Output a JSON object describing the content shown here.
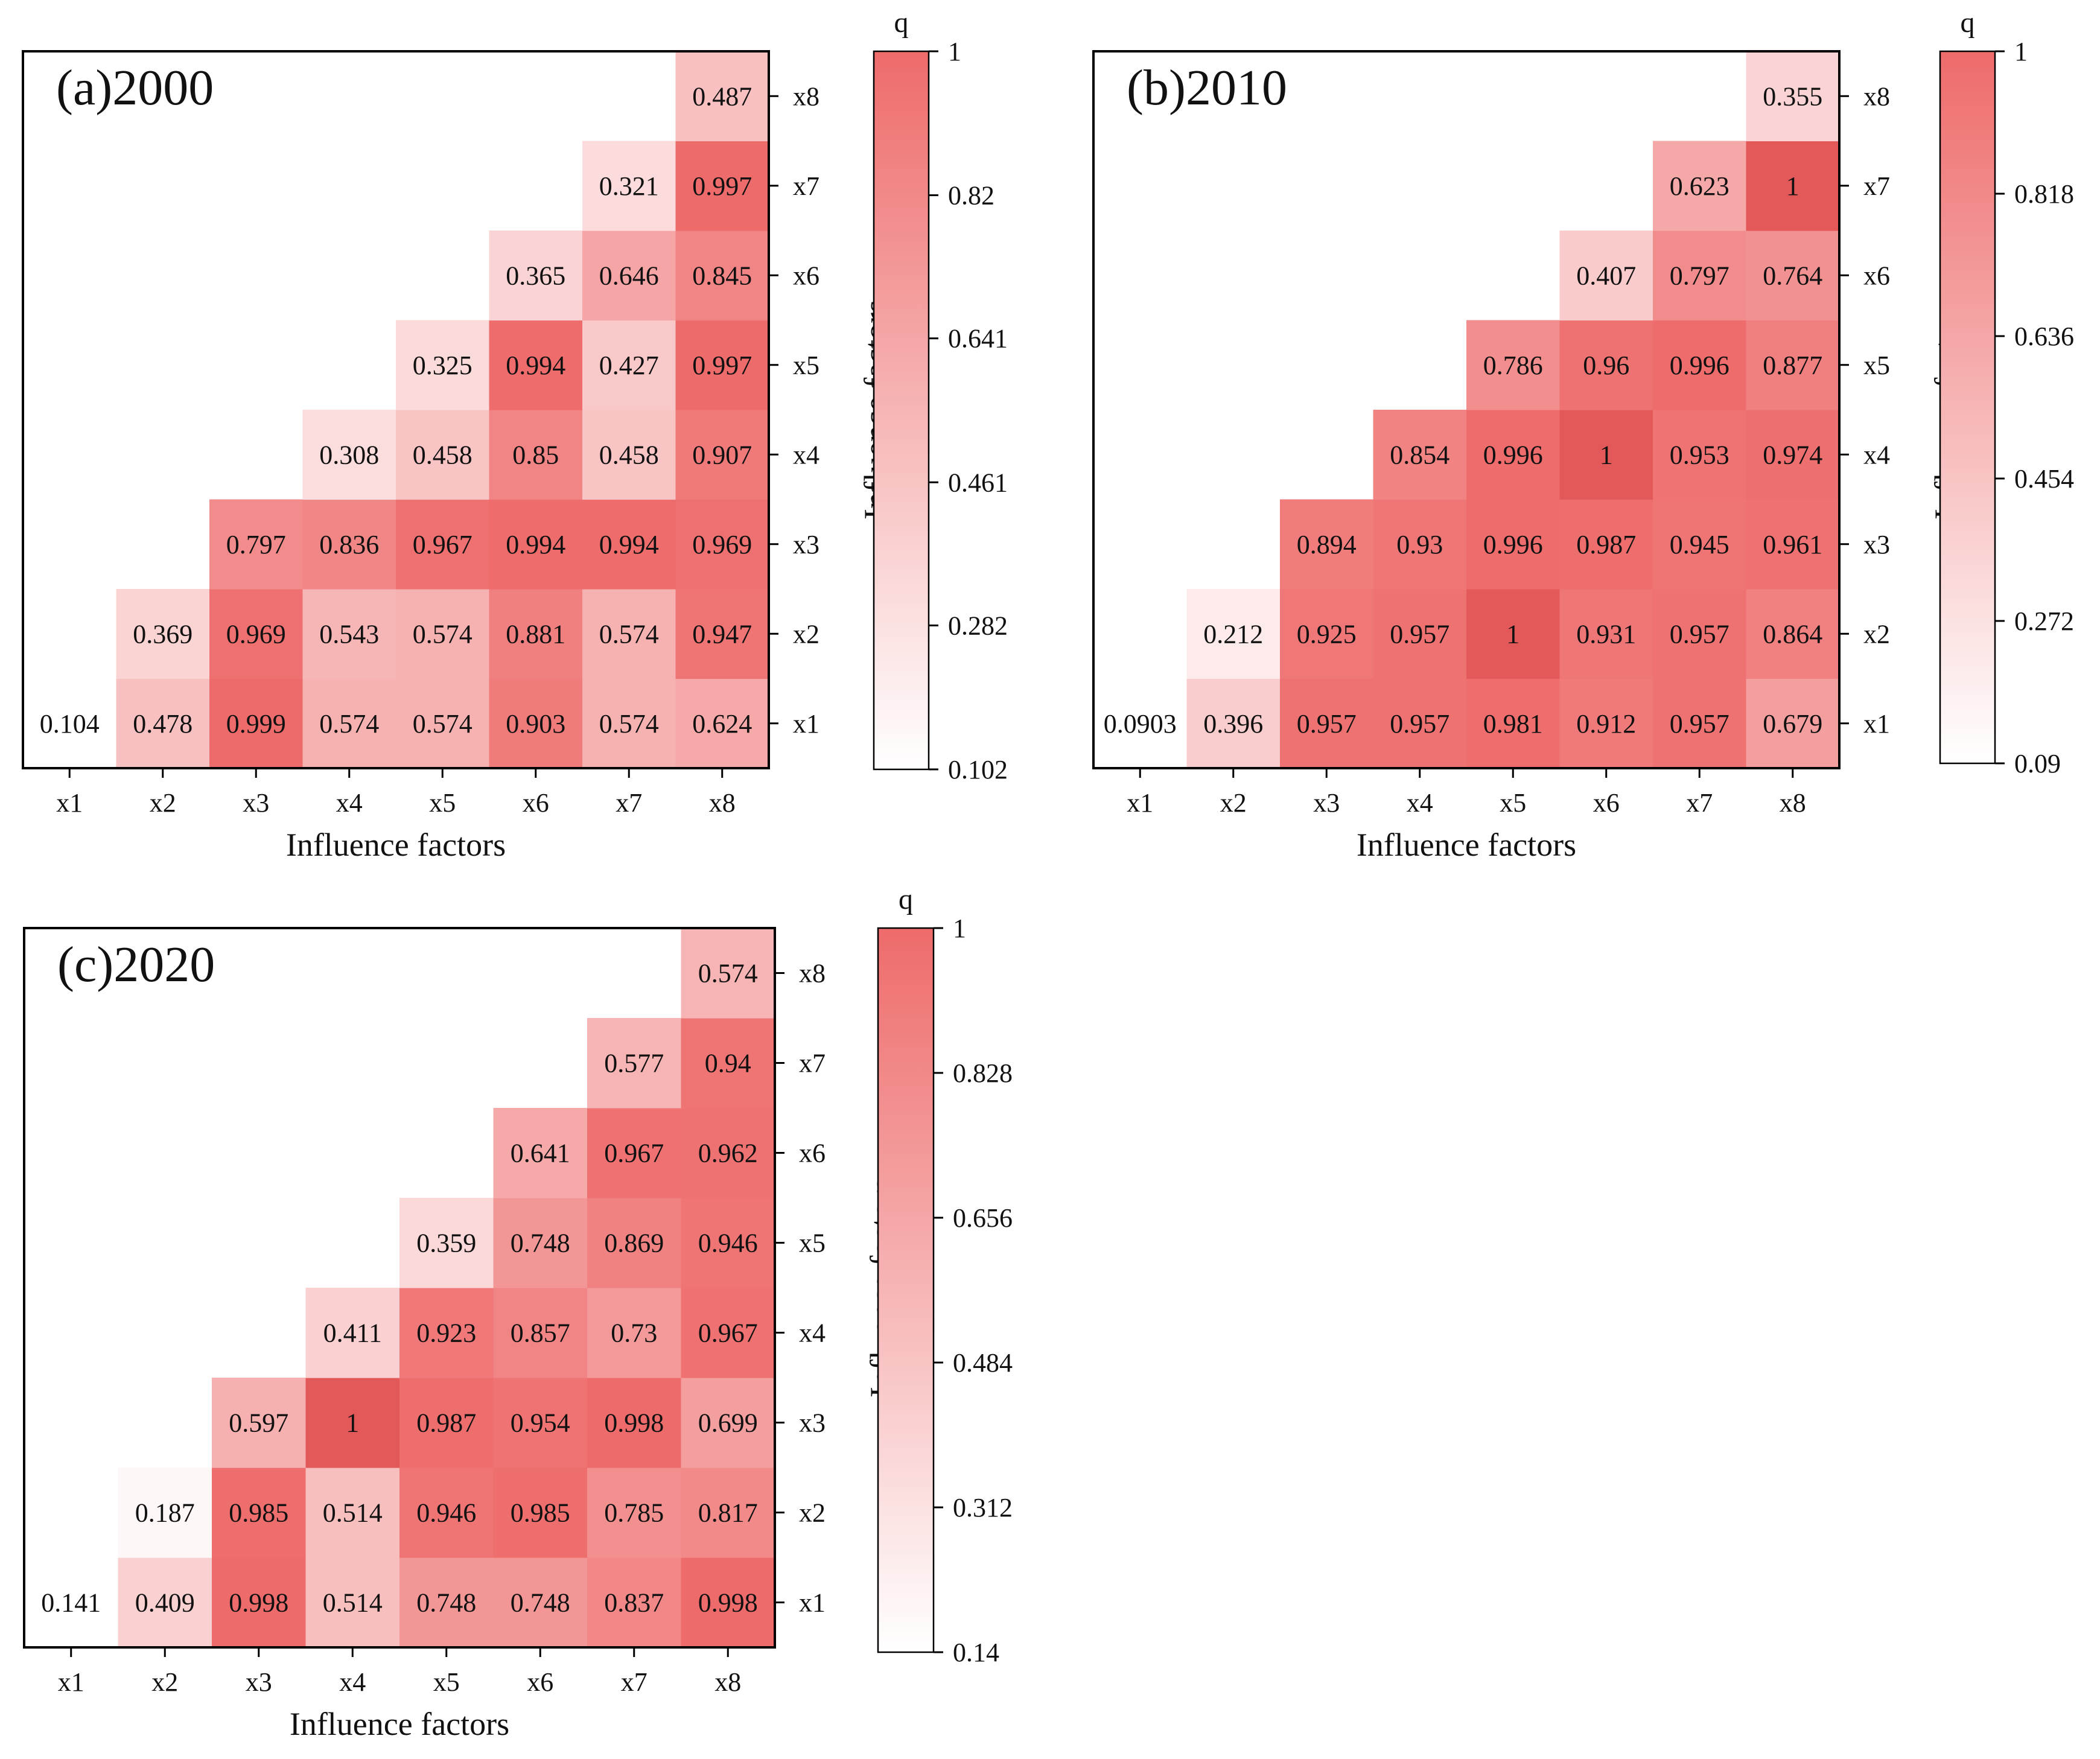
{
  "chart_data": [
    {
      "type": "heatmap",
      "title": "(a)2000",
      "xlabel": "Influence factors",
      "ylabel": "Influence factors",
      "x_categories": [
        "x1",
        "x2",
        "x3",
        "x4",
        "x5",
        "x6",
        "x7",
        "x8"
      ],
      "y_categories": [
        "x1",
        "x2",
        "x3",
        "x4",
        "x5",
        "x6",
        "x7",
        "x8"
      ],
      "cells": [
        {
          "x": "x1",
          "y": "x1",
          "value": 0.104,
          "label": "0.104"
        },
        {
          "x": "x2",
          "y": "x1",
          "value": 0.478,
          "label": "0.478"
        },
        {
          "x": "x3",
          "y": "x1",
          "value": 0.999,
          "label": "0.999"
        },
        {
          "x": "x4",
          "y": "x1",
          "value": 0.574,
          "label": "0.574"
        },
        {
          "x": "x5",
          "y": "x1",
          "value": 0.574,
          "label": "0.574"
        },
        {
          "x": "x6",
          "y": "x1",
          "value": 0.903,
          "label": "0.903"
        },
        {
          "x": "x7",
          "y": "x1",
          "value": 0.574,
          "label": "0.574"
        },
        {
          "x": "x8",
          "y": "x1",
          "value": 0.624,
          "label": "0.624"
        },
        {
          "x": "x2",
          "y": "x2",
          "value": 0.369,
          "label": "0.369"
        },
        {
          "x": "x3",
          "y": "x2",
          "value": 0.969,
          "label": "0.969"
        },
        {
          "x": "x4",
          "y": "x2",
          "value": 0.543,
          "label": "0.543"
        },
        {
          "x": "x5",
          "y": "x2",
          "value": 0.574,
          "label": "0.574"
        },
        {
          "x": "x6",
          "y": "x2",
          "value": 0.881,
          "label": "0.881"
        },
        {
          "x": "x7",
          "y": "x2",
          "value": 0.574,
          "label": "0.574"
        },
        {
          "x": "x8",
          "y": "x2",
          "value": 0.947,
          "label": "0.947"
        },
        {
          "x": "x3",
          "y": "x3",
          "value": 0.797,
          "label": "0.797"
        },
        {
          "x": "x4",
          "y": "x3",
          "value": 0.836,
          "label": "0.836"
        },
        {
          "x": "x5",
          "y": "x3",
          "value": 0.967,
          "label": "0.967"
        },
        {
          "x": "x6",
          "y": "x3",
          "value": 0.994,
          "label": "0.994"
        },
        {
          "x": "x7",
          "y": "x3",
          "value": 0.994,
          "label": "0.994"
        },
        {
          "x": "x8",
          "y": "x3",
          "value": 0.969,
          "label": "0.969"
        },
        {
          "x": "x4",
          "y": "x4",
          "value": 0.308,
          "label": "0.308"
        },
        {
          "x": "x5",
          "y": "x4",
          "value": 0.458,
          "label": "0.458"
        },
        {
          "x": "x6",
          "y": "x4",
          "value": 0.85,
          "label": "0.85"
        },
        {
          "x": "x7",
          "y": "x4",
          "value": 0.458,
          "label": "0.458"
        },
        {
          "x": "x8",
          "y": "x4",
          "value": 0.907,
          "label": "0.907"
        },
        {
          "x": "x5",
          "y": "x5",
          "value": 0.325,
          "label": "0.325"
        },
        {
          "x": "x6",
          "y": "x5",
          "value": 0.994,
          "label": "0.994"
        },
        {
          "x": "x7",
          "y": "x5",
          "value": 0.427,
          "label": "0.427"
        },
        {
          "x": "x8",
          "y": "x5",
          "value": 0.997,
          "label": "0.997"
        },
        {
          "x": "x6",
          "y": "x6",
          "value": 0.365,
          "label": "0.365"
        },
        {
          "x": "x7",
          "y": "x6",
          "value": 0.646,
          "label": "0.646"
        },
        {
          "x": "x8",
          "y": "x6",
          "value": 0.845,
          "label": "0.845"
        },
        {
          "x": "x7",
          "y": "x7",
          "value": 0.321,
          "label": "0.321"
        },
        {
          "x": "x8",
          "y": "x7",
          "value": 0.997,
          "label": "0.997"
        },
        {
          "x": "x8",
          "y": "x8",
          "value": 0.487,
          "label": "0.487"
        }
      ],
      "colorbar": {
        "title": "q",
        "min": 0.102,
        "max": 1,
        "ticks": [
          0.102,
          0.282,
          0.461,
          0.641,
          0.82,
          1
        ],
        "tick_labels": [
          "0.102",
          "0.282",
          "0.461",
          "0.641",
          "0.82",
          "1"
        ],
        "color_low": "#ffffff",
        "color_high": "#ee6b6b"
      }
    },
    {
      "type": "heatmap",
      "title": "(b)2010",
      "xlabel": "Influence factors",
      "ylabel": "Influence factors",
      "x_categories": [
        "x1",
        "x2",
        "x3",
        "x4",
        "x5",
        "x6",
        "x7",
        "x8"
      ],
      "y_categories": [
        "x1",
        "x2",
        "x3",
        "x4",
        "x5",
        "x6",
        "x7",
        "x8"
      ],
      "cells": [
        {
          "x": "x1",
          "y": "x1",
          "value": 0.0903,
          "label": "0.0903"
        },
        {
          "x": "x2",
          "y": "x1",
          "value": 0.396,
          "label": "0.396"
        },
        {
          "x": "x3",
          "y": "x1",
          "value": 0.957,
          "label": "0.957"
        },
        {
          "x": "x4",
          "y": "x1",
          "value": 0.957,
          "label": "0.957"
        },
        {
          "x": "x5",
          "y": "x1",
          "value": 0.981,
          "label": "0.981"
        },
        {
          "x": "x6",
          "y": "x1",
          "value": 0.912,
          "label": "0.912"
        },
        {
          "x": "x7",
          "y": "x1",
          "value": 0.957,
          "label": "0.957"
        },
        {
          "x": "x8",
          "y": "x1",
          "value": 0.679,
          "label": "0.679"
        },
        {
          "x": "x2",
          "y": "x2",
          "value": 0.212,
          "label": "0.212"
        },
        {
          "x": "x3",
          "y": "x2",
          "value": 0.925,
          "label": "0.925"
        },
        {
          "x": "x4",
          "y": "x2",
          "value": 0.957,
          "label": "0.957"
        },
        {
          "x": "x5",
          "y": "x2",
          "value": 1,
          "label": "1"
        },
        {
          "x": "x6",
          "y": "x2",
          "value": 0.931,
          "label": "0.931"
        },
        {
          "x": "x7",
          "y": "x2",
          "value": 0.957,
          "label": "0.957"
        },
        {
          "x": "x8",
          "y": "x2",
          "value": 0.864,
          "label": "0.864"
        },
        {
          "x": "x3",
          "y": "x3",
          "value": 0.894,
          "label": "0.894"
        },
        {
          "x": "x4",
          "y": "x3",
          "value": 0.93,
          "label": "0.93"
        },
        {
          "x": "x5",
          "y": "x3",
          "value": 0.996,
          "label": "0.996"
        },
        {
          "x": "x6",
          "y": "x3",
          "value": 0.987,
          "label": "0.987"
        },
        {
          "x": "x7",
          "y": "x3",
          "value": 0.945,
          "label": "0.945"
        },
        {
          "x": "x8",
          "y": "x3",
          "value": 0.961,
          "label": "0.961"
        },
        {
          "x": "x4",
          "y": "x4",
          "value": 0.854,
          "label": "0.854"
        },
        {
          "x": "x5",
          "y": "x4",
          "value": 0.996,
          "label": "0.996"
        },
        {
          "x": "x6",
          "y": "x4",
          "value": 1,
          "label": "1"
        },
        {
          "x": "x7",
          "y": "x4",
          "value": 0.953,
          "label": "0.953"
        },
        {
          "x": "x8",
          "y": "x4",
          "value": 0.974,
          "label": "0.974"
        },
        {
          "x": "x5",
          "y": "x5",
          "value": 0.786,
          "label": "0.786"
        },
        {
          "x": "x6",
          "y": "x5",
          "value": 0.96,
          "label": "0.96"
        },
        {
          "x": "x7",
          "y": "x5",
          "value": 0.996,
          "label": "0.996"
        },
        {
          "x": "x8",
          "y": "x5",
          "value": 0.877,
          "label": "0.877"
        },
        {
          "x": "x6",
          "y": "x6",
          "value": 0.407,
          "label": "0.407"
        },
        {
          "x": "x7",
          "y": "x6",
          "value": 0.797,
          "label": "0.797"
        },
        {
          "x": "x8",
          "y": "x6",
          "value": 0.764,
          "label": "0.764"
        },
        {
          "x": "x7",
          "y": "x7",
          "value": 0.623,
          "label": "0.623"
        },
        {
          "x": "x8",
          "y": "x7",
          "value": 1,
          "label": "1"
        },
        {
          "x": "x8",
          "y": "x8",
          "value": 0.355,
          "label": "0.355"
        }
      ],
      "colorbar": {
        "title": "q",
        "min": 0.09,
        "max": 1,
        "ticks": [
          0.09,
          0.272,
          0.454,
          0.636,
          0.818,
          1
        ],
        "tick_labels": [
          "0.09",
          "0.272",
          "0.454",
          "0.636",
          "0.818",
          "1"
        ],
        "color_low": "#ffffff",
        "color_high": "#ee6b6b"
      }
    },
    {
      "type": "heatmap",
      "title": "(c)2020",
      "xlabel": "Influence factors",
      "ylabel": "Influence factors",
      "x_categories": [
        "x1",
        "x2",
        "x3",
        "x4",
        "x5",
        "x6",
        "x7",
        "x8"
      ],
      "y_categories": [
        "x1",
        "x2",
        "x3",
        "x4",
        "x5",
        "x6",
        "x7",
        "x8"
      ],
      "cells": [
        {
          "x": "x1",
          "y": "x1",
          "value": 0.141,
          "label": "0.141"
        },
        {
          "x": "x2",
          "y": "x1",
          "value": 0.409,
          "label": "0.409"
        },
        {
          "x": "x3",
          "y": "x1",
          "value": 0.998,
          "label": "0.998"
        },
        {
          "x": "x4",
          "y": "x1",
          "value": 0.514,
          "label": "0.514"
        },
        {
          "x": "x5",
          "y": "x1",
          "value": 0.748,
          "label": "0.748"
        },
        {
          "x": "x6",
          "y": "x1",
          "value": 0.748,
          "label": "0.748"
        },
        {
          "x": "x7",
          "y": "x1",
          "value": 0.837,
          "label": "0.837"
        },
        {
          "x": "x8",
          "y": "x1",
          "value": 0.998,
          "label": "0.998"
        },
        {
          "x": "x2",
          "y": "x2",
          "value": 0.187,
          "label": "0.187"
        },
        {
          "x": "x3",
          "y": "x2",
          "value": 0.985,
          "label": "0.985"
        },
        {
          "x": "x4",
          "y": "x2",
          "value": 0.514,
          "label": "0.514"
        },
        {
          "x": "x5",
          "y": "x2",
          "value": 0.946,
          "label": "0.946"
        },
        {
          "x": "x6",
          "y": "x2",
          "value": 0.985,
          "label": "0.985"
        },
        {
          "x": "x7",
          "y": "x2",
          "value": 0.785,
          "label": "0.785"
        },
        {
          "x": "x8",
          "y": "x2",
          "value": 0.817,
          "label": "0.817"
        },
        {
          "x": "x3",
          "y": "x3",
          "value": 0.597,
          "label": "0.597"
        },
        {
          "x": "x4",
          "y": "x3",
          "value": 1,
          "label": "1"
        },
        {
          "x": "x5",
          "y": "x3",
          "value": 0.987,
          "label": "0.987"
        },
        {
          "x": "x6",
          "y": "x3",
          "value": 0.954,
          "label": "0.954"
        },
        {
          "x": "x7",
          "y": "x3",
          "value": 0.998,
          "label": "0.998"
        },
        {
          "x": "x8",
          "y": "x3",
          "value": 0.699,
          "label": "0.699"
        },
        {
          "x": "x4",
          "y": "x4",
          "value": 0.411,
          "label": "0.411"
        },
        {
          "x": "x5",
          "y": "x4",
          "value": 0.923,
          "label": "0.923"
        },
        {
          "x": "x6",
          "y": "x4",
          "value": 0.857,
          "label": "0.857"
        },
        {
          "x": "x7",
          "y": "x4",
          "value": 0.73,
          "label": "0.73"
        },
        {
          "x": "x8",
          "y": "x4",
          "value": 0.967,
          "label": "0.967"
        },
        {
          "x": "x5",
          "y": "x5",
          "value": 0.359,
          "label": "0.359"
        },
        {
          "x": "x6",
          "y": "x5",
          "value": 0.748,
          "label": "0.748"
        },
        {
          "x": "x7",
          "y": "x5",
          "value": 0.869,
          "label": "0.869"
        },
        {
          "x": "x8",
          "y": "x5",
          "value": 0.946,
          "label": "0.946"
        },
        {
          "x": "x6",
          "y": "x6",
          "value": 0.641,
          "label": "0.641"
        },
        {
          "x": "x7",
          "y": "x6",
          "value": 0.967,
          "label": "0.967"
        },
        {
          "x": "x8",
          "y": "x6",
          "value": 0.962,
          "label": "0.962"
        },
        {
          "x": "x7",
          "y": "x7",
          "value": 0.577,
          "label": "0.577"
        },
        {
          "x": "x8",
          "y": "x7",
          "value": 0.94,
          "label": "0.94"
        },
        {
          "x": "x8",
          "y": "x8",
          "value": 0.574,
          "label": "0.574"
        }
      ],
      "colorbar": {
        "title": "q",
        "min": 0.14,
        "max": 1,
        "ticks": [
          0.14,
          0.312,
          0.484,
          0.656,
          0.828,
          1
        ],
        "tick_labels": [
          "0.14",
          "0.312",
          "0.484",
          "0.656",
          "0.828",
          "1"
        ],
        "color_low": "#ffffff",
        "color_high": "#ee6b6b"
      }
    }
  ]
}
